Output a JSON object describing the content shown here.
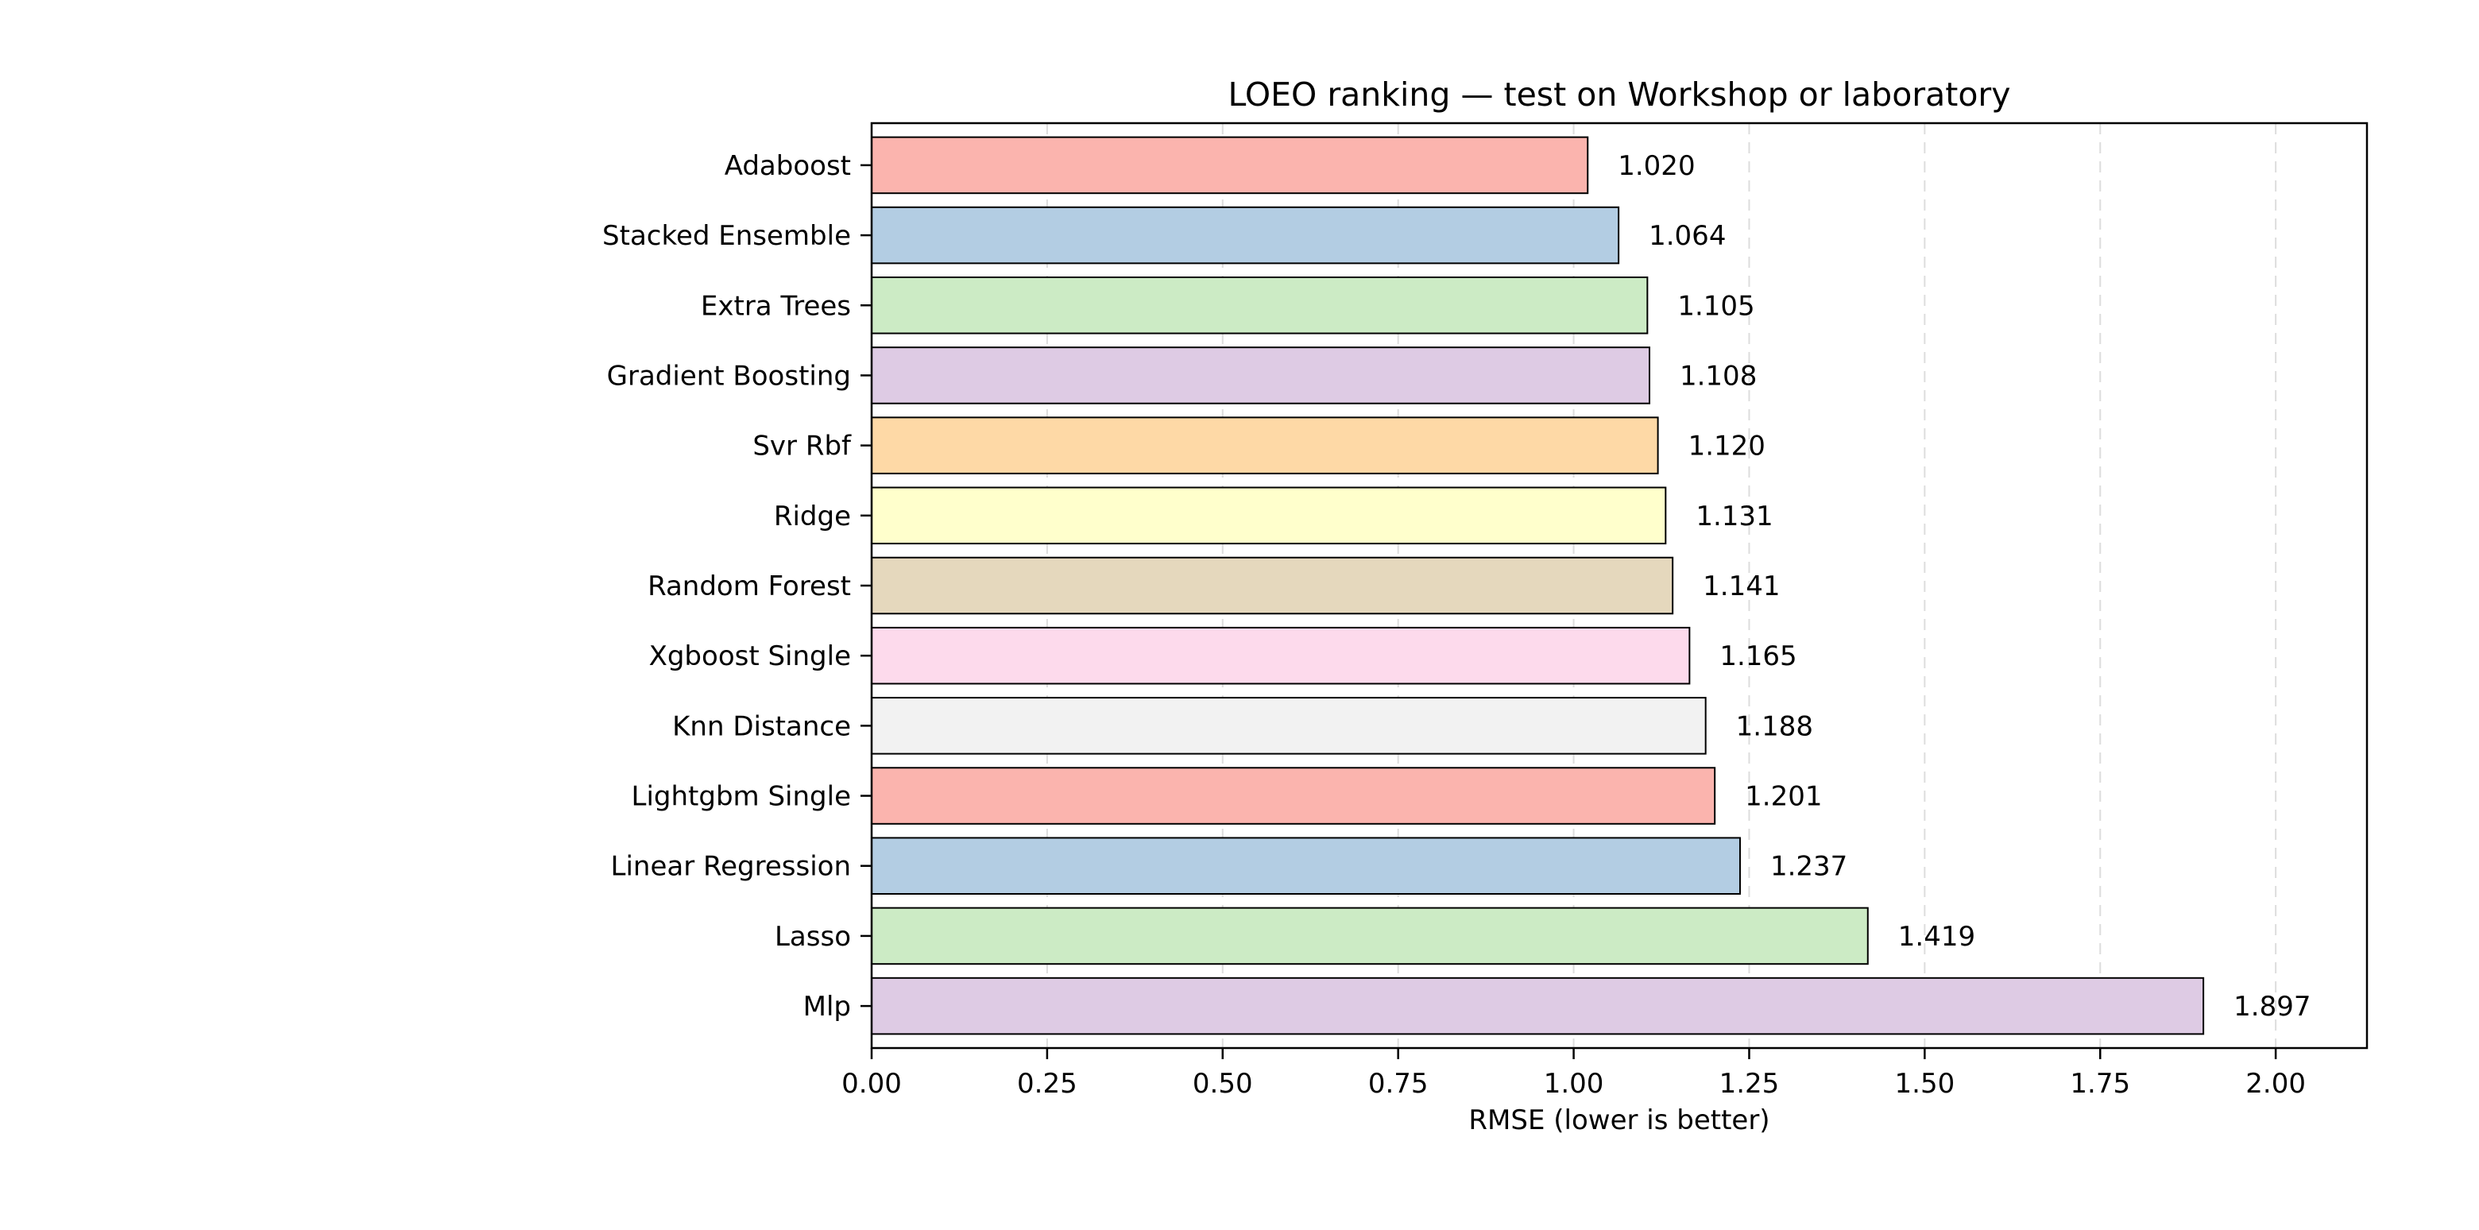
{
  "chart_data": {
    "type": "bar",
    "orientation": "horizontal",
    "title": "LOEO ranking — test on Workshop or laboratory",
    "xlabel": "RMSE (lower is better)",
    "ylabel": "",
    "xlim": [
      0,
      2.13
    ],
    "xticks": [
      0.0,
      0.25,
      0.5,
      0.75,
      1.0,
      1.25,
      1.5,
      1.75,
      2.0
    ],
    "xtick_labels": [
      "0.00",
      "0.25",
      "0.50",
      "0.75",
      "1.00",
      "1.25",
      "1.50",
      "1.75",
      "2.00"
    ],
    "grid": "x-dashed",
    "categories": [
      "Adaboost",
      "Stacked Ensemble",
      "Extra Trees",
      "Gradient Boosting",
      "Svr Rbf",
      "Ridge",
      "Random Forest",
      "Xgboost Single",
      "Knn Distance",
      "Lightgbm Single",
      "Linear Regression",
      "Lasso",
      "Mlp"
    ],
    "values": [
      1.02,
      1.064,
      1.105,
      1.108,
      1.12,
      1.131,
      1.141,
      1.165,
      1.188,
      1.201,
      1.237,
      1.419,
      1.897
    ],
    "value_labels": [
      "1.020",
      "1.064",
      "1.105",
      "1.108",
      "1.120",
      "1.131",
      "1.141",
      "1.165",
      "1.188",
      "1.201",
      "1.237",
      "1.419",
      "1.897"
    ],
    "colors": [
      "#fbb4ae",
      "#b3cde3",
      "#ccebc5",
      "#decbe4",
      "#fed9a6",
      "#ffffcc",
      "#e5d8bd",
      "#fddaec",
      "#f2f2f2",
      "#fbb4ae",
      "#b3cde3",
      "#ccebc5",
      "#decbe4"
    ]
  }
}
